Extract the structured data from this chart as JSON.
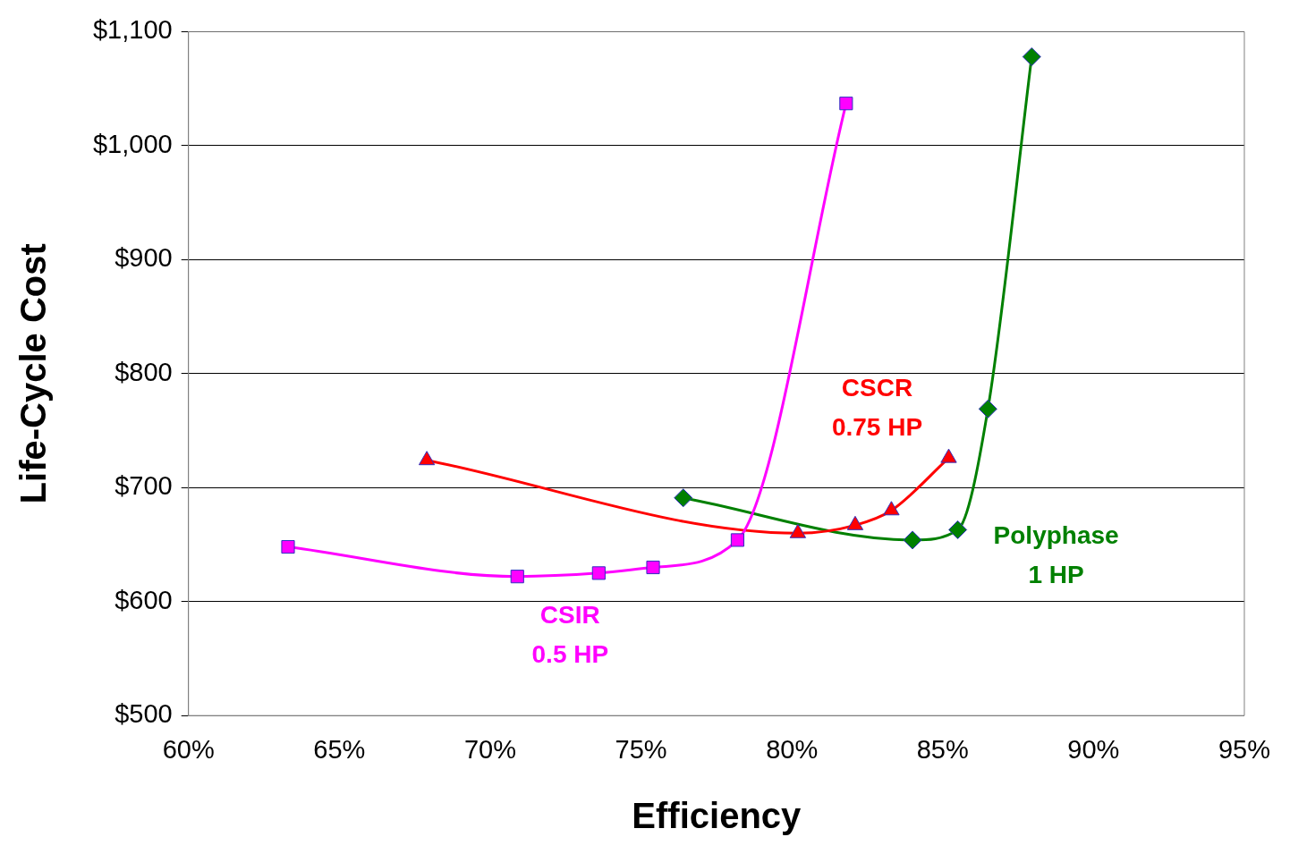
{
  "chart_data": {
    "type": "line",
    "xlabel": "Efficiency",
    "ylabel": "Life-Cycle Cost",
    "xlim": [
      60,
      95
    ],
    "xticks": [
      {
        "value": 60,
        "label": "60%"
      },
      {
        "value": 65,
        "label": "65%"
      },
      {
        "value": 70,
        "label": "70%"
      },
      {
        "value": 75,
        "label": "75%"
      },
      {
        "value": 80,
        "label": "80%"
      },
      {
        "value": 85,
        "label": "85%"
      },
      {
        "value": 90,
        "label": "90%"
      },
      {
        "value": 95,
        "label": "95%"
      }
    ],
    "ylim": [
      500,
      1100
    ],
    "yticks": [
      {
        "value": 500,
        "label": "$500"
      },
      {
        "value": 600,
        "label": "$600"
      },
      {
        "value": 700,
        "label": "$700"
      },
      {
        "value": 800,
        "label": "$800"
      },
      {
        "value": 900,
        "label": "$900"
      },
      {
        "value": 1000,
        "label": "$1,000"
      },
      {
        "value": 1100,
        "label": "$1,100"
      }
    ],
    "grid": "y",
    "legend": false,
    "line_style": "solid",
    "series": [
      {
        "name": "CSIR 0.5 HP",
        "color": "#ff00ff",
        "marker": "square",
        "x": [
          63.3,
          70.9,
          73.6,
          75.4,
          78.2,
          81.8
        ],
        "values": [
          648,
          622,
          625,
          630,
          654,
          1037
        ]
      },
      {
        "name": "CSCR 0.75 HP",
        "color": "#ff0000",
        "marker": "triangle",
        "x": [
          67.9,
          80.2,
          82.1,
          83.3,
          85.2
        ],
        "values": [
          724,
          660,
          667,
          680,
          726
        ]
      },
      {
        "name": "Polyphase 1 HP",
        "color": "#008000",
        "marker": "diamond",
        "x": [
          76.4,
          84.0,
          85.5,
          86.5,
          87.95
        ],
        "values": [
          691,
          654,
          663,
          769,
          1078
        ]
      }
    ]
  }
}
